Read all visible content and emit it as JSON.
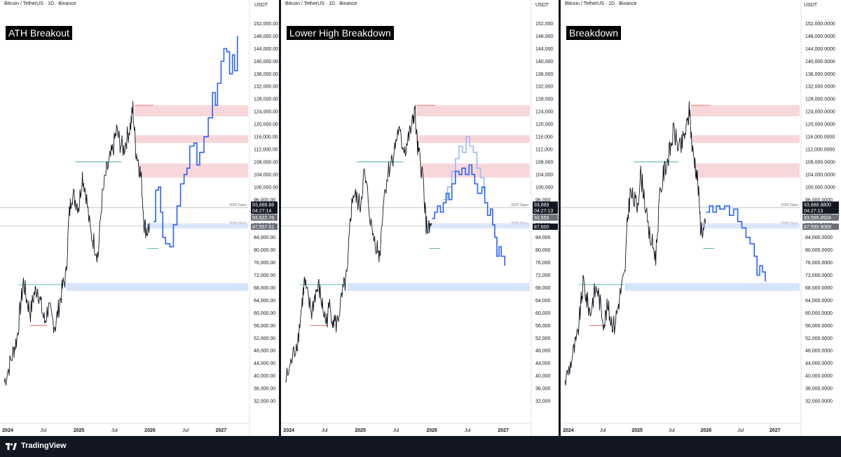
{
  "brand": {
    "name": "TradingView",
    "icon": "tradingview-logo-icon"
  },
  "colors": {
    "candle": "#131722",
    "projection": "#2962ff",
    "projection_faint": "#9db8f5",
    "resistance_zone": "#f8d7da",
    "support_zone": "#d6e4fb",
    "uptrend_line": "#26a69a",
    "downtrend_line": "#ef5350",
    "price_tag": "#131722",
    "secondary_tag": "#6b6f78"
  },
  "chart_data": [
    {
      "type": "line",
      "symbol": "Bitcoin / TetherUS · 1D · Binance",
      "scenario_label": "ATH Breakout",
      "unit": "USDT",
      "ylim": [
        28000,
        155000
      ],
      "y_ticks": [
        "152,000.00",
        "148,000.00",
        "144,000.00",
        "140,000.00",
        "136,000.00",
        "132,000.00",
        "128,000.00",
        "124,000.00",
        "120,000.00",
        "116,000.00",
        "112,000.00",
        "108,000.00",
        "104,000.00",
        "100,000.00",
        "96,000.00",
        "92,000.00",
        "88,000.00",
        "84,000.00",
        "80,000.00",
        "76,000.00",
        "72,000.00",
        "68,000.00",
        "64,000.00",
        "60,000.00",
        "56,000.00",
        "52,000.00",
        "48,000.00",
        "44,000.00",
        "40,000.00",
        "36,000.00",
        "32,000.00"
      ],
      "x_ticks": [
        {
          "label": "2024",
          "t": 2024.0
        },
        {
          "label": "Jul",
          "t": 2024.5
        },
        {
          "label": "2025",
          "t": 2025.0
        },
        {
          "label": "Jul",
          "t": 2025.5
        },
        {
          "label": "2026",
          "t": 2026.0
        },
        {
          "label": "Jul",
          "t": 2026.5
        },
        {
          "label": "2027",
          "t": 2027.0
        }
      ],
      "price_tags": [
        {
          "label": "93,888.88",
          "value": 94400,
          "style": "dark"
        },
        {
          "label": "04:27:14",
          "value": 92500,
          "style": "dark"
        },
        {
          "label": "93,622.76",
          "value": 90300,
          "style": "gray"
        },
        {
          "label": "87,557.51",
          "value": 87400,
          "style": "gray"
        }
      ],
      "reference_lines": [
        {
          "label": "2025 Open",
          "value": 93500
        },
        {
          "label": "2026 Open",
          "value": 87600
        }
      ],
      "projection": [
        {
          "t": 2026.05,
          "v": 89000
        },
        {
          "t": 2026.08,
          "v": 99000
        },
        {
          "t": 2026.12,
          "v": 100000
        },
        {
          "t": 2026.15,
          "v": 92000
        },
        {
          "t": 2026.18,
          "v": 84000
        },
        {
          "t": 2026.22,
          "v": 82000
        },
        {
          "t": 2026.28,
          "v": 81000
        },
        {
          "t": 2026.33,
          "v": 88000
        },
        {
          "t": 2026.38,
          "v": 94000
        },
        {
          "t": 2026.43,
          "v": 101000
        },
        {
          "t": 2026.48,
          "v": 104000
        },
        {
          "t": 2026.52,
          "v": 106000
        },
        {
          "t": 2026.56,
          "v": 113000
        },
        {
          "t": 2026.62,
          "v": 114000
        },
        {
          "t": 2026.66,
          "v": 107000
        },
        {
          "t": 2026.7,
          "v": 111000
        },
        {
          "t": 2026.76,
          "v": 116000
        },
        {
          "t": 2026.82,
          "v": 122000
        },
        {
          "t": 2026.88,
          "v": 130000
        },
        {
          "t": 2026.92,
          "v": 126000
        },
        {
          "t": 2026.95,
          "v": 133000
        },
        {
          "t": 2027.0,
          "v": 140000
        },
        {
          "t": 2027.04,
          "v": 144000
        },
        {
          "t": 2027.08,
          "v": 143000
        },
        {
          "t": 2027.12,
          "v": 136000
        },
        {
          "t": 2027.16,
          "v": 142000
        },
        {
          "t": 2027.19,
          "v": 137000
        },
        {
          "t": 2027.23,
          "v": 148000
        }
      ]
    },
    {
      "type": "line",
      "symbol": "Bitcoin / TetherUS · 1D · Binance",
      "scenario_label": "Lower High Breakdown",
      "unit": "USDT",
      "ylim": [
        28000,
        155000
      ],
      "y_ticks": [
        "152,000",
        "148,000",
        "144,000",
        "140,000",
        "136,000",
        "132,000",
        "128,000",
        "124,000",
        "120,000",
        "116,000",
        "112,000",
        "108,000",
        "104,000",
        "100,000",
        "96,000",
        "92,000",
        "88,000",
        "84,000",
        "80,000",
        "76,000",
        "72,000",
        "68,000",
        "64,000",
        "60,000",
        "56,000",
        "52,000",
        "48,000",
        "44,000",
        "40,000",
        "36,000",
        "32,000"
      ],
      "x_ticks": [
        {
          "label": "2024",
          "t": 2024.0
        },
        {
          "label": "Jul",
          "t": 2024.5
        },
        {
          "label": "2025",
          "t": 2025.0
        },
        {
          "label": "Jul",
          "t": 2025.5
        },
        {
          "label": "2026",
          "t": 2026.0
        },
        {
          "label": "Jul",
          "t": 2026.5
        },
        {
          "label": "2027",
          "t": 2027.0
        }
      ],
      "price_tags": [
        {
          "label": "93,889",
          "value": 94400,
          "style": "dark"
        },
        {
          "label": "04:27:13",
          "value": 92500,
          "style": "dark"
        },
        {
          "label": "93,555",
          "value": 90300,
          "style": "gray"
        },
        {
          "label": "87,600",
          "value": 87400,
          "style": "dark"
        }
      ],
      "reference_lines": [
        {
          "label": "2025 Open",
          "value": 93500
        },
        {
          "label": "2026 Open",
          "value": 87600
        }
      ],
      "projection": [
        {
          "t": 2026.0,
          "v": 90000
        },
        {
          "t": 2026.04,
          "v": 92000
        },
        {
          "t": 2026.08,
          "v": 94000
        },
        {
          "t": 2026.12,
          "v": 92000
        },
        {
          "t": 2026.16,
          "v": 95000
        },
        {
          "t": 2026.2,
          "v": 98000
        },
        {
          "t": 2026.24,
          "v": 96000
        },
        {
          "t": 2026.28,
          "v": 101000
        },
        {
          "t": 2026.33,
          "v": 105000
        },
        {
          "t": 2026.38,
          "v": 104000
        },
        {
          "t": 2026.42,
          "v": 106000
        },
        {
          "t": 2026.47,
          "v": 104000
        },
        {
          "t": 2026.52,
          "v": 107000
        },
        {
          "t": 2026.56,
          "v": 104000
        },
        {
          "t": 2026.6,
          "v": 101000
        },
        {
          "t": 2026.64,
          "v": 98000
        },
        {
          "t": 2026.7,
          "v": 100000
        },
        {
          "t": 2026.74,
          "v": 95000
        },
        {
          "t": 2026.78,
          "v": 91000
        },
        {
          "t": 2026.82,
          "v": 93000
        },
        {
          "t": 2026.85,
          "v": 88000
        },
        {
          "t": 2026.88,
          "v": 84000
        },
        {
          "t": 2026.91,
          "v": 78000
        },
        {
          "t": 2026.94,
          "v": 81000
        },
        {
          "t": 2026.97,
          "v": 78000
        },
        {
          "t": 2027.02,
          "v": 75000
        }
      ],
      "projection_faint": [
        {
          "t": 2026.16,
          "v": 96000
        },
        {
          "t": 2026.22,
          "v": 100000
        },
        {
          "t": 2026.28,
          "v": 105000
        },
        {
          "t": 2026.33,
          "v": 109000
        },
        {
          "t": 2026.38,
          "v": 113000
        },
        {
          "t": 2026.43,
          "v": 111000
        },
        {
          "t": 2026.48,
          "v": 116000
        },
        {
          "t": 2026.53,
          "v": 113000
        },
        {
          "t": 2026.58,
          "v": 111000
        },
        {
          "t": 2026.63,
          "v": 106000
        },
        {
          "t": 2026.68,
          "v": 103000
        },
        {
          "t": 2026.73,
          "v": 99000
        }
      ]
    },
    {
      "type": "line",
      "symbol": "Bitcoin / TetherUS · 1D · Binance",
      "scenario_label": "Breakdown",
      "unit": "USDT",
      "ylim": [
        28000,
        155000
      ],
      "y_ticks": [
        "152,000.0000",
        "148,000.0000",
        "144,000.0000",
        "140,000.0000",
        "136,000.0000",
        "132,000.0000",
        "128,000.0000",
        "124,000.0000",
        "120,000.0000",
        "116,000.0000",
        "112,000.0000",
        "108,000.0000",
        "104,000.0000",
        "100,000.0000",
        "96,000.0000",
        "92,000.0000",
        "88,000.0000",
        "84,000.0000",
        "80,000.0000",
        "76,000.0000",
        "72,000.0000",
        "68,000.0000",
        "64,000.0000",
        "60,000.0000",
        "56,000.0000",
        "52,000.0000",
        "48,000.0000",
        "44,000.0000",
        "40,000.0000",
        "36,000.0000",
        "32,000.0000"
      ],
      "x_ticks": [
        {
          "label": "2024",
          "t": 2024.0
        },
        {
          "label": "Jul",
          "t": 2024.5
        },
        {
          "label": "2025",
          "t": 2025.0
        },
        {
          "label": "Jul",
          "t": 2025.5
        },
        {
          "label": "2026",
          "t": 2026.0
        },
        {
          "label": "Jul",
          "t": 2026.5
        },
        {
          "label": "2027",
          "t": 2027.0
        }
      ],
      "price_tags": [
        {
          "label": "93,888.8800",
          "value": 94400,
          "style": "dark"
        },
        {
          "label": "04:27:13",
          "value": 92500,
          "style": "dark"
        },
        {
          "label": "93,555.4524",
          "value": 90300,
          "style": "gray"
        },
        {
          "label": "87,599.9069",
          "value": 87400,
          "style": "gray"
        }
      ],
      "reference_lines": [
        {
          "label": "2025 Open",
          "value": 93500
        },
        {
          "label": "2026 Open",
          "value": 87600
        }
      ],
      "projection": [
        {
          "t": 2026.0,
          "v": 92000
        },
        {
          "t": 2026.05,
          "v": 94000
        },
        {
          "t": 2026.1,
          "v": 92000
        },
        {
          "t": 2026.15,
          "v": 94000
        },
        {
          "t": 2026.2,
          "v": 93000
        },
        {
          "t": 2026.27,
          "v": 94000
        },
        {
          "t": 2026.34,
          "v": 91000
        },
        {
          "t": 2026.4,
          "v": 93000
        },
        {
          "t": 2026.46,
          "v": 89000
        },
        {
          "t": 2026.52,
          "v": 87000
        },
        {
          "t": 2026.58,
          "v": 84000
        },
        {
          "t": 2026.64,
          "v": 82000
        },
        {
          "t": 2026.7,
          "v": 78000
        },
        {
          "t": 2026.74,
          "v": 72000
        },
        {
          "t": 2026.78,
          "v": 75000
        },
        {
          "t": 2026.82,
          "v": 73000
        },
        {
          "t": 2026.86,
          "v": 70000
        }
      ]
    }
  ]
}
